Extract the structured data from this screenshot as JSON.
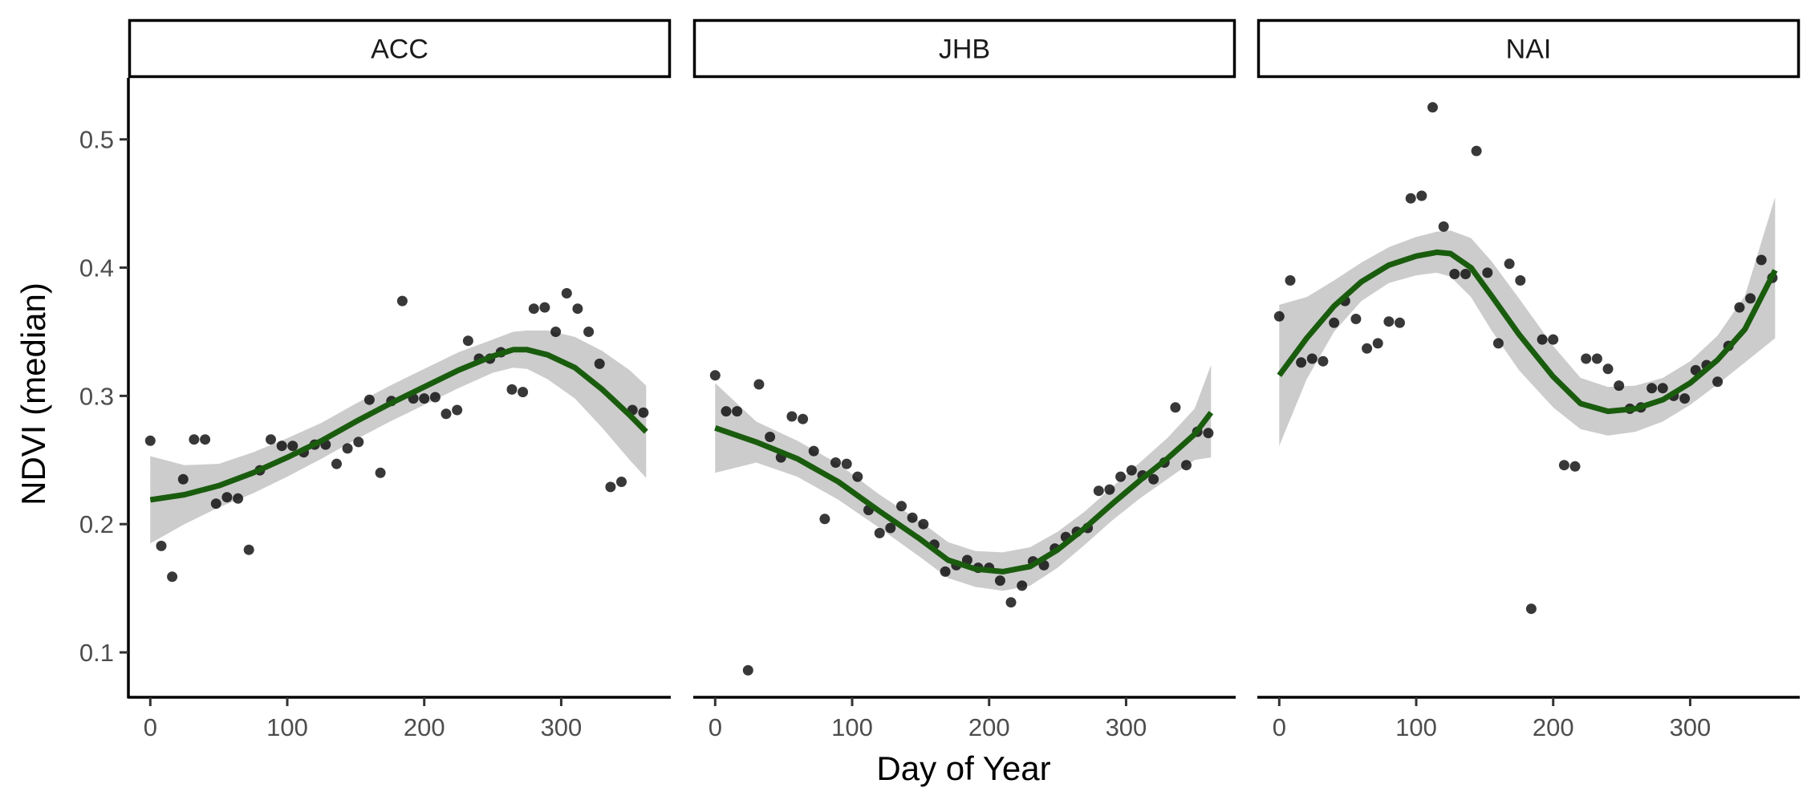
{
  "chart_data": {
    "type": "scatter",
    "xlabel": "Day of Year",
    "ylabel": "NDVI (median)",
    "xlim": [
      -16,
      380
    ],
    "ylim": [
      0.065,
      0.548
    ],
    "x_ticks": [
      0,
      100,
      200,
      300
    ],
    "y_ticks": [
      0.1,
      0.2,
      0.3,
      0.4,
      0.5
    ],
    "grid": false,
    "legend": "none",
    "colors": {
      "points": "#000000",
      "smooth_line": "#1a5c0e",
      "confidence_band": "#cccccc",
      "strip_border": "#000000"
    },
    "panels": [
      {
        "name": "ACC",
        "points": {
          "x": [
            0,
            8,
            16,
            24,
            32,
            40,
            48,
            56,
            64,
            72,
            80,
            88,
            96,
            104,
            112,
            120,
            128,
            136,
            144,
            152,
            160,
            168,
            176,
            184,
            192,
            200,
            208,
            216,
            224,
            232,
            240,
            248,
            256,
            264,
            272,
            280,
            288,
            296,
            304,
            312,
            320,
            328,
            336,
            344,
            352,
            360
          ],
          "y": [
            0.265,
            0.183,
            0.159,
            0.235,
            0.266,
            0.266,
            0.216,
            0.221,
            0.22,
            0.18,
            0.242,
            0.266,
            0.261,
            0.261,
            0.256,
            0.262,
            0.262,
            0.247,
            0.259,
            0.264,
            0.297,
            0.24,
            0.296,
            0.374,
            0.298,
            0.298,
            0.299,
            0.286,
            0.289,
            0.343,
            0.329,
            0.329,
            0.334,
            0.305,
            0.303,
            0.368,
            0.369,
            0.35,
            0.38,
            0.368,
            0.35,
            0.325,
            0.229,
            0.233,
            0.289,
            0.287
          ]
        },
        "smooth": {
          "x": [
            0,
            25,
            50,
            75,
            100,
            125,
            150,
            175,
            200,
            225,
            250,
            265,
            275,
            290,
            310,
            330,
            350,
            362
          ],
          "y": [
            0.219,
            0.223,
            0.23,
            0.24,
            0.252,
            0.265,
            0.28,
            0.294,
            0.307,
            0.32,
            0.331,
            0.336,
            0.336,
            0.332,
            0.322,
            0.305,
            0.285,
            0.272
          ],
          "lower": [
            0.185,
            0.2,
            0.213,
            0.224,
            0.237,
            0.251,
            0.266,
            0.28,
            0.293,
            0.306,
            0.318,
            0.322,
            0.321,
            0.313,
            0.298,
            0.275,
            0.25,
            0.236
          ],
          "upper": [
            0.253,
            0.246,
            0.247,
            0.256,
            0.267,
            0.279,
            0.294,
            0.308,
            0.321,
            0.334,
            0.344,
            0.35,
            0.351,
            0.351,
            0.346,
            0.335,
            0.32,
            0.308
          ]
        }
      },
      {
        "name": "JHB",
        "points": {
          "x": [
            0,
            8,
            16,
            24,
            32,
            40,
            48,
            56,
            64,
            72,
            80,
            88,
            96,
            104,
            112,
            120,
            128,
            136,
            144,
            152,
            160,
            168,
            176,
            184,
            192,
            200,
            208,
            216,
            224,
            232,
            240,
            248,
            256,
            264,
            272,
            280,
            288,
            296,
            304,
            312,
            320,
            328,
            336,
            344,
            352,
            360
          ],
          "y": [
            0.316,
            0.288,
            0.288,
            0.086,
            0.309,
            0.268,
            0.252,
            0.284,
            0.282,
            0.257,
            0.204,
            0.248,
            0.247,
            0.237,
            0.211,
            0.193,
            0.197,
            0.214,
            0.205,
            0.2,
            0.184,
            0.163,
            0.168,
            0.172,
            0.166,
            0.166,
            0.156,
            0.139,
            0.152,
            0.171,
            0.168,
            0.181,
            0.19,
            0.194,
            0.197,
            0.226,
            0.227,
            0.237,
            0.242,
            0.238,
            0.235,
            0.248,
            0.291,
            0.246,
            0.272,
            0.271
          ]
        },
        "smooth": {
          "x": [
            0,
            30,
            60,
            90,
            120,
            150,
            170,
            190,
            210,
            230,
            250,
            270,
            290,
            310,
            330,
            350,
            362
          ],
          "y": [
            0.275,
            0.264,
            0.251,
            0.233,
            0.21,
            0.188,
            0.172,
            0.165,
            0.163,
            0.167,
            0.18,
            0.197,
            0.216,
            0.234,
            0.251,
            0.27,
            0.287
          ],
          "lower": [
            0.24,
            0.248,
            0.237,
            0.219,
            0.197,
            0.174,
            0.158,
            0.151,
            0.148,
            0.152,
            0.166,
            0.184,
            0.203,
            0.22,
            0.235,
            0.25,
            0.252
          ],
          "upper": [
            0.31,
            0.28,
            0.265,
            0.247,
            0.223,
            0.202,
            0.186,
            0.179,
            0.178,
            0.182,
            0.194,
            0.21,
            0.229,
            0.248,
            0.267,
            0.29,
            0.324
          ]
        }
      },
      {
        "name": "NAI",
        "points": {
          "x": [
            0,
            8,
            16,
            24,
            32,
            40,
            48,
            56,
            64,
            72,
            80,
            88,
            96,
            104,
            112,
            120,
            128,
            136,
            144,
            152,
            160,
            168,
            176,
            184,
            192,
            200,
            208,
            216,
            224,
            232,
            240,
            248,
            256,
            264,
            272,
            280,
            288,
            296,
            304,
            312,
            320,
            328,
            336,
            344,
            352,
            360
          ],
          "y": [
            0.362,
            0.39,
            0.326,
            0.329,
            0.327,
            0.357,
            0.374,
            0.36,
            0.337,
            0.341,
            0.358,
            0.357,
            0.454,
            0.456,
            0.525,
            0.432,
            0.395,
            0.395,
            0.491,
            0.396,
            0.341,
            0.403,
            0.39,
            0.134,
            0.344,
            0.344,
            0.246,
            0.245,
            0.329,
            0.329,
            0.321,
            0.308,
            0.29,
            0.291,
            0.306,
            0.306,
            0.3,
            0.298,
            0.32,
            0.324,
            0.311,
            0.339,
            0.369,
            0.376,
            0.406,
            0.392
          ]
        },
        "smooth": {
          "x": [
            0,
            20,
            40,
            60,
            80,
            100,
            115,
            125,
            140,
            155,
            175,
            200,
            220,
            240,
            260,
            280,
            300,
            320,
            340,
            362
          ],
          "y": [
            0.316,
            0.345,
            0.37,
            0.389,
            0.402,
            0.409,
            0.412,
            0.411,
            0.4,
            0.378,
            0.348,
            0.315,
            0.294,
            0.288,
            0.29,
            0.297,
            0.31,
            0.328,
            0.352,
            0.398
          ],
          "lower": [
            0.261,
            0.313,
            0.35,
            0.374,
            0.388,
            0.394,
            0.396,
            0.393,
            0.377,
            0.351,
            0.32,
            0.291,
            0.274,
            0.269,
            0.272,
            0.28,
            0.293,
            0.309,
            0.326,
            0.345
          ],
          "upper": [
            0.371,
            0.377,
            0.39,
            0.404,
            0.416,
            0.424,
            0.428,
            0.429,
            0.423,
            0.405,
            0.376,
            0.339,
            0.314,
            0.307,
            0.308,
            0.314,
            0.327,
            0.347,
            0.378,
            0.455
          ]
        }
      }
    ]
  }
}
